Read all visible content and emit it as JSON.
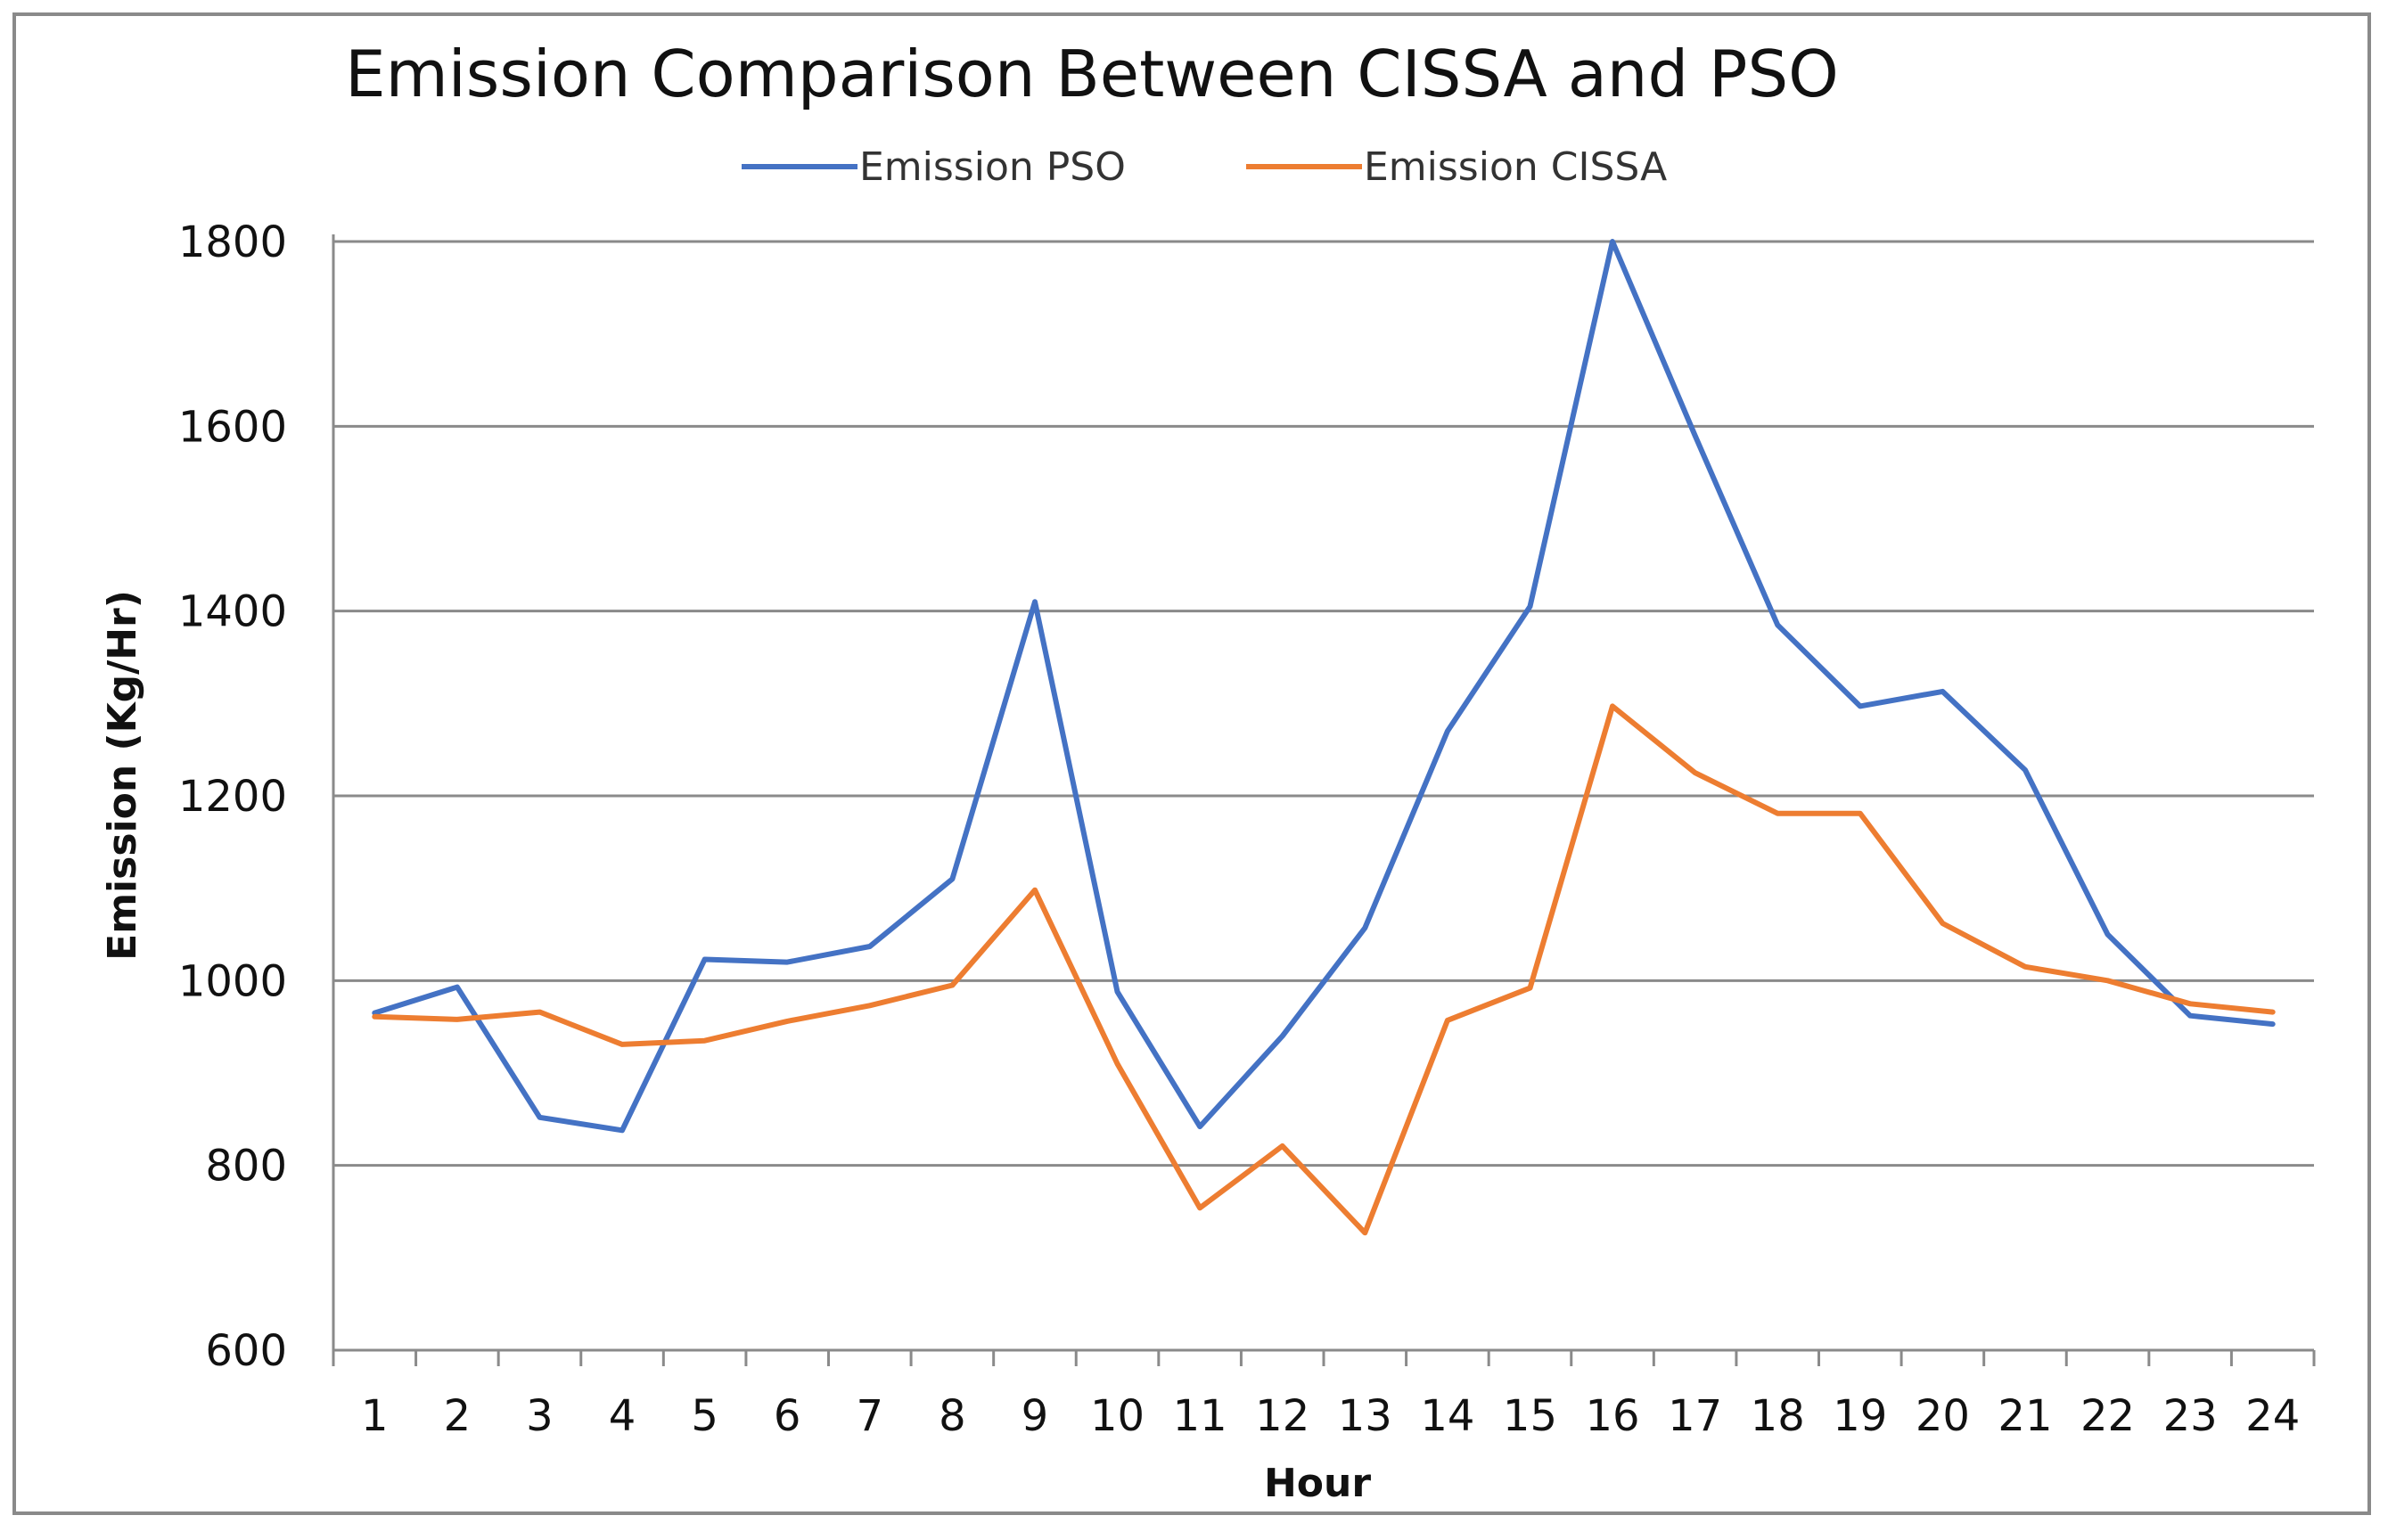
{
  "chart_data": {
    "type": "line",
    "title": "Emission Comparison Between CISSA and PSO",
    "xlabel": "Hour",
    "ylabel": "Emission (Kg/Hr)",
    "ylim": [
      600,
      1800
    ],
    "yticks": [
      600,
      800,
      1000,
      1200,
      1400,
      1600,
      1800
    ],
    "grid": true,
    "legend_position": "top-center",
    "categories": [
      "1",
      "2",
      "3",
      "4",
      "5",
      "6",
      "7",
      "8",
      "9",
      "10",
      "11",
      "12",
      "13",
      "14",
      "15",
      "16",
      "17",
      "18",
      "19",
      "20",
      "21",
      "22",
      "23",
      "24"
    ],
    "series": [
      {
        "name": "Emission PSO",
        "color": "#4472C4",
        "values": [
          965,
          993,
          852,
          838,
          1023,
          1020,
          1037,
          1110,
          1410,
          988,
          842,
          940,
          1057,
          1270,
          1405,
          1800,
          1590,
          1385,
          1297,
          1313,
          1228,
          1050,
          962,
          953
        ]
      },
      {
        "name": "Emission CISSA",
        "color": "#ED7D31",
        "values": [
          961,
          958,
          966,
          931,
          935,
          956,
          973,
          995,
          1098,
          910,
          754,
          821,
          727,
          957,
          992,
          1297,
          1225,
          1181,
          1181,
          1062,
          1015,
          1000,
          975,
          966
        ]
      }
    ]
  }
}
